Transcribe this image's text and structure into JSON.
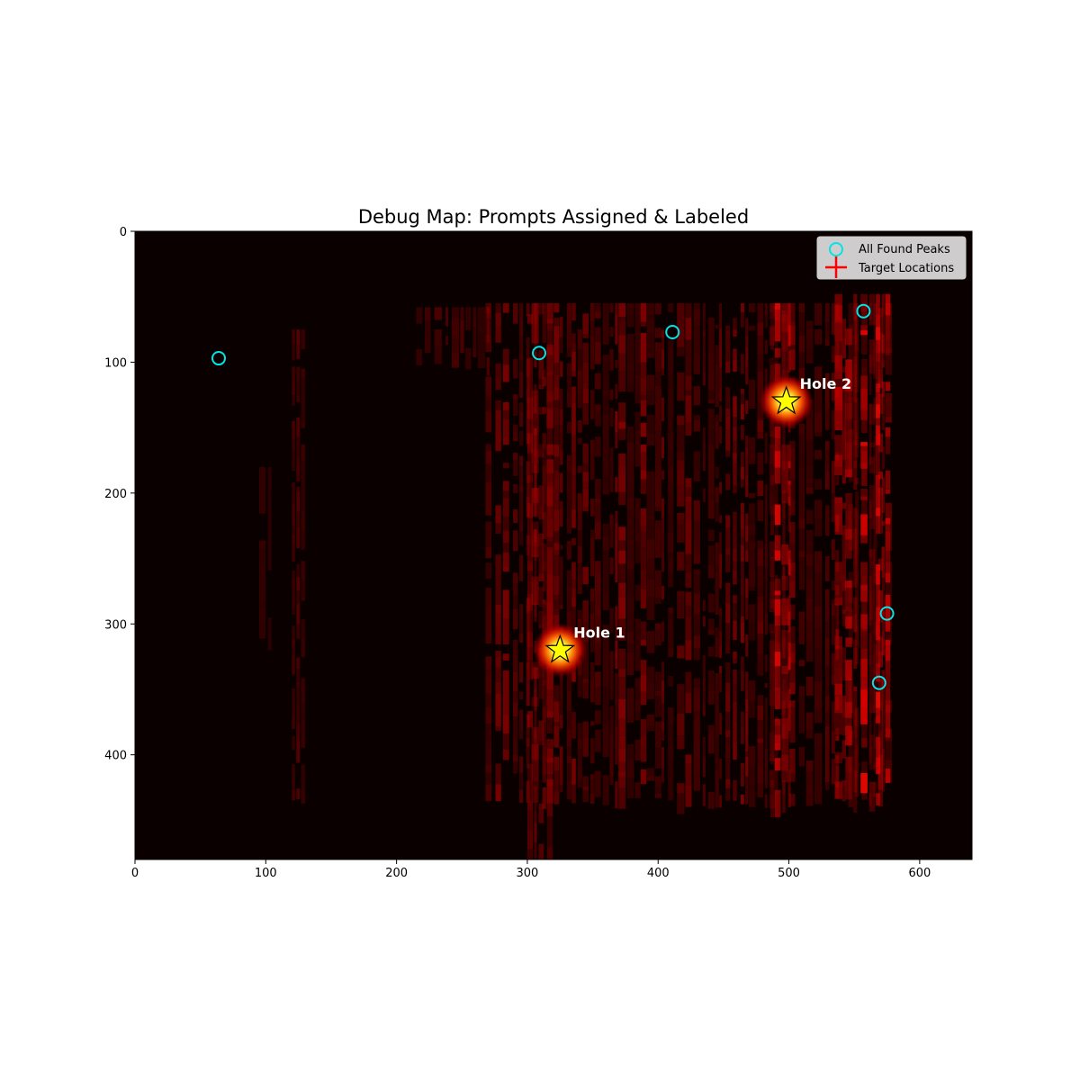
{
  "chart_data": {
    "type": "heatmap",
    "title": "Debug Map: Prompts Assigned & Labeled",
    "xlabel": "",
    "ylabel": "",
    "xlim": [
      0,
      640
    ],
    "ylim": [
      480,
      0
    ],
    "x_ticks": [
      0,
      100,
      200,
      300,
      400,
      500,
      600
    ],
    "y_ticks": [
      0,
      100,
      200,
      300,
      400
    ],
    "grid": false,
    "colormap": "hot",
    "background_color": "#0a0000",
    "heat_regions": [
      {
        "x": [
          268,
          576
        ],
        "y": [
          55,
          432
        ],
        "level": 0.35
      },
      {
        "x": [
          120,
          132
        ],
        "y": [
          75,
          430
        ],
        "level": 0.25
      },
      {
        "x": [
          95,
          106
        ],
        "y": [
          180,
          310
        ],
        "level": 0.15
      },
      {
        "x": [
          535,
          576
        ],
        "y": [
          48,
          432
        ],
        "level": 0.6
      },
      {
        "x": [
          485,
          500
        ],
        "y": [
          55,
          432
        ],
        "level": 0.55
      },
      {
        "x": [
          300,
          315
        ],
        "y": [
          55,
          520
        ],
        "level": 0.45
      },
      {
        "x": [
          215,
          270
        ],
        "y": [
          58,
          100
        ],
        "level": 0.25
      }
    ],
    "peaks": [
      {
        "x": 64,
        "y": 97
      },
      {
        "x": 309,
        "y": 93
      },
      {
        "x": 411,
        "y": 77
      },
      {
        "x": 557,
        "y": 61
      },
      {
        "x": 575,
        "y": 292
      },
      {
        "x": 569,
        "y": 345
      }
    ],
    "targets": [
      {
        "label": "Hole 1",
        "x": 325,
        "y": 320
      },
      {
        "label": "Hole 2",
        "x": 498,
        "y": 130
      }
    ],
    "legend": {
      "placement": "top-right",
      "entries": [
        {
          "name": "All Found Peaks",
          "marker": "circle",
          "color": "#00e5e5"
        },
        {
          "name": "Target Locations",
          "marker": "cross",
          "color": "#ff0000"
        }
      ]
    },
    "colors": {
      "peak": "#00e5e5",
      "star_fill": "#ffff00",
      "star_stroke": "#000000",
      "label": "#ffffff",
      "target": "#ff0000"
    }
  }
}
